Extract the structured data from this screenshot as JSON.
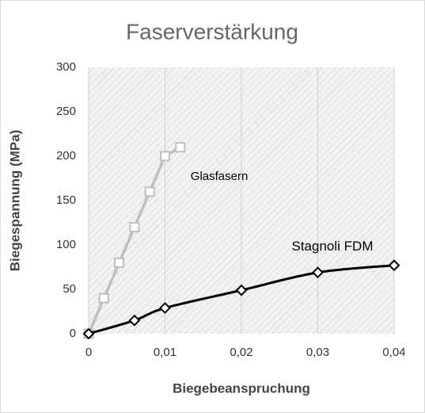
{
  "chart_data": {
    "type": "line",
    "title": "Faserverstärkung",
    "x_label": "Biegebeanspruchung",
    "y_label": "Biegespannung (MPa)",
    "xlim": [
      0,
      0.04
    ],
    "ylim": [
      0,
      300
    ],
    "xticks": [
      0,
      {
        "value": 0.01,
        "label": "0,01"
      },
      {
        "value": 0.02,
        "label": "0,02"
      },
      {
        "value": 0.03,
        "label": "0,03"
      },
      {
        "value": 0.04,
        "label": "0,04"
      }
    ],
    "yticks": [
      0,
      50,
      100,
      150,
      200,
      250,
      300
    ],
    "grid": true,
    "series": [
      {
        "name": "Glasfasern",
        "color": "#bfbfbf",
        "marker": "square",
        "smooth": false,
        "x": [
          0,
          0.002,
          0.004,
          0.006,
          0.008,
          0.01,
          0.012
        ],
        "values": [
          0,
          40,
          80,
          120,
          160,
          200,
          210
        ]
      },
      {
        "name": "Stagnoli FDM",
        "color": "#000000",
        "marker": "diamond",
        "smooth": true,
        "x": [
          0,
          0.006,
          0.01,
          0.02,
          0.03,
          0.04
        ],
        "values": [
          0,
          15,
          29,
          49,
          69,
          77
        ]
      }
    ]
  }
}
